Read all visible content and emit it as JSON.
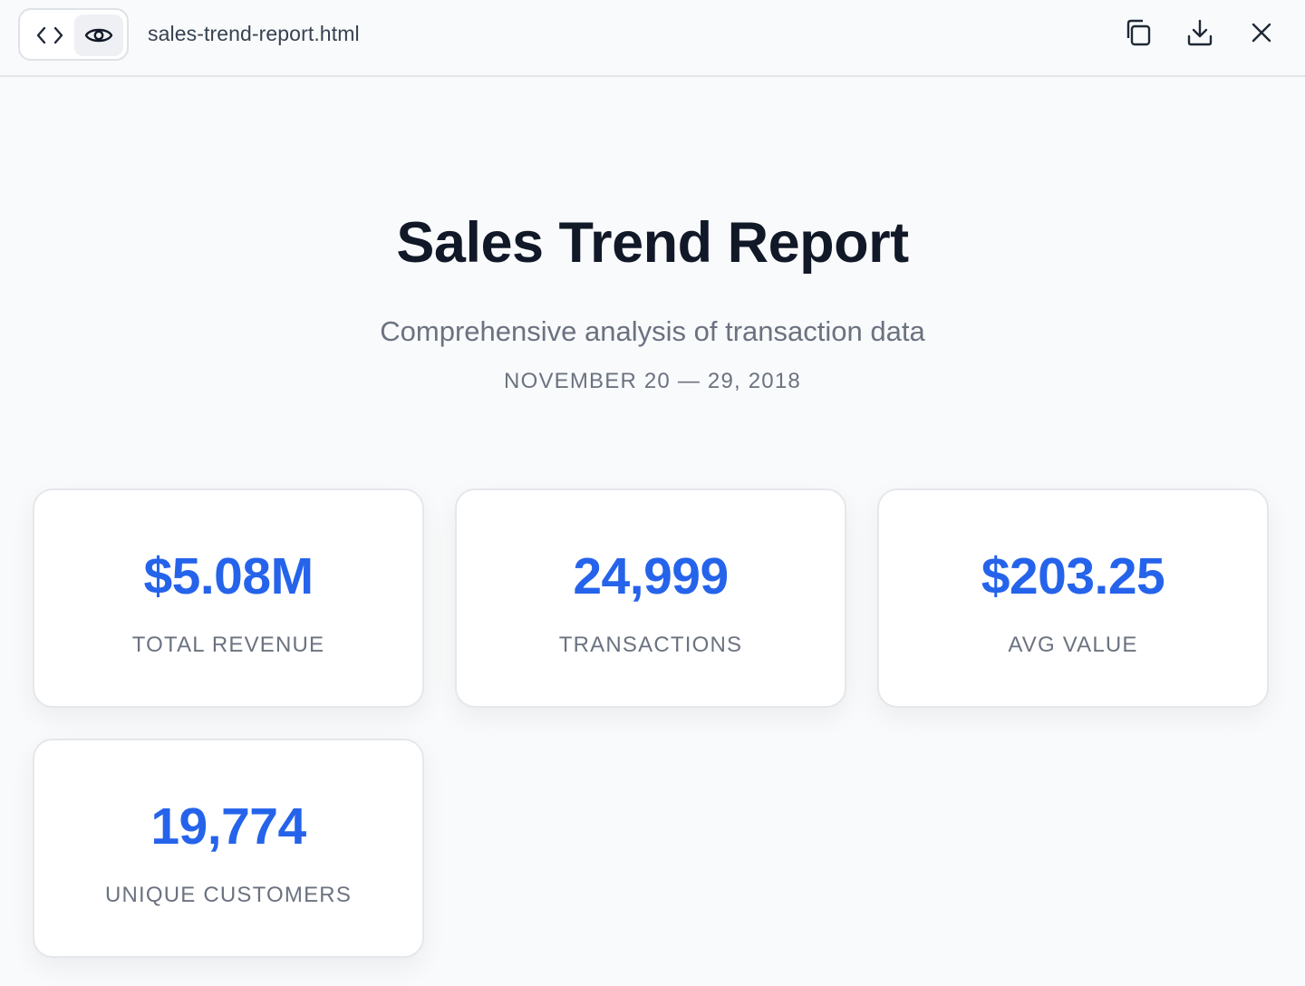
{
  "toolbar": {
    "file_name": "sales-trend-report.html",
    "view_toggle": {
      "code_icon": "code-brackets-icon",
      "preview_icon": "eye-icon",
      "active": "preview"
    },
    "actions": [
      {
        "name": "copy",
        "icon": "copy-icon"
      },
      {
        "name": "download",
        "icon": "download-icon"
      },
      {
        "name": "close",
        "icon": "close-icon"
      }
    ]
  },
  "report": {
    "title": "Sales Trend Report",
    "subtitle": "Comprehensive analysis of transaction data",
    "date_range": "NOVEMBER 20 — 29, 2018"
  },
  "kpis": [
    {
      "value": "$5.08M",
      "label": "TOTAL REVENUE"
    },
    {
      "value": "24,999",
      "label": "TRANSACTIONS"
    },
    {
      "value": "$203.25",
      "label": "AVG VALUE"
    },
    {
      "value": "19,774",
      "label": "UNIQUE CUSTOMERS"
    }
  ],
  "colors": {
    "accent": "#2563eb",
    "title": "#111827",
    "muted": "#6b7280",
    "background": "#f9fafb",
    "card": "#ffffff"
  }
}
